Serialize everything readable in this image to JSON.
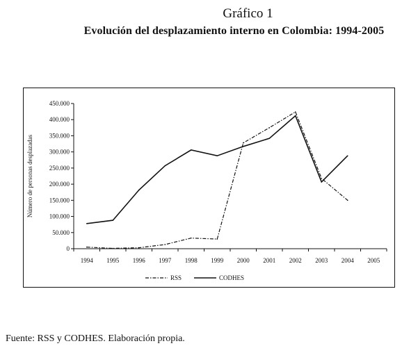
{
  "header": {
    "figure_label": "Gráfico 1",
    "title": "Evolución del desplazamiento interno en Colombia: 1994-2005"
  },
  "footer": {
    "source": "Fuente: RSS y CODHES. Elaboración propia."
  },
  "colors": {
    "line": "#111111",
    "background": "#ffffff"
  },
  "chart_data": {
    "type": "line",
    "title": "",
    "xlabel": "",
    "ylabel": "Número de personas desplazadas",
    "categories": [
      "1994",
      "1995",
      "1996",
      "1997",
      "1998",
      "1999",
      "2000",
      "2001",
      "2002",
      "2003",
      "2004",
      "2005"
    ],
    "ylim": [
      0,
      450000
    ],
    "yticks": [
      0,
      50000,
      100000,
      150000,
      200000,
      250000,
      300000,
      350000,
      400000,
      450000
    ],
    "ytick_labels": [
      "0",
      "50.000",
      "100.000",
      "150.000",
      "200.000",
      "250.000",
      "300.000",
      "350.000",
      "400.000",
      "450.000"
    ],
    "grid": false,
    "legend_position": "bottom",
    "series": [
      {
        "name": "RSS",
        "style": "dash-dot",
        "values": [
          5000,
          1000,
          3000,
          13000,
          33000,
          30000,
          328000,
          375000,
          424000,
          218000,
          150000,
          null
        ]
      },
      {
        "name": "CODHES",
        "style": "solid",
        "values": [
          78000,
          88000,
          182000,
          257000,
          306000,
          288000,
          317000,
          342000,
          412000,
          207000,
          288000,
          null
        ]
      }
    ]
  }
}
